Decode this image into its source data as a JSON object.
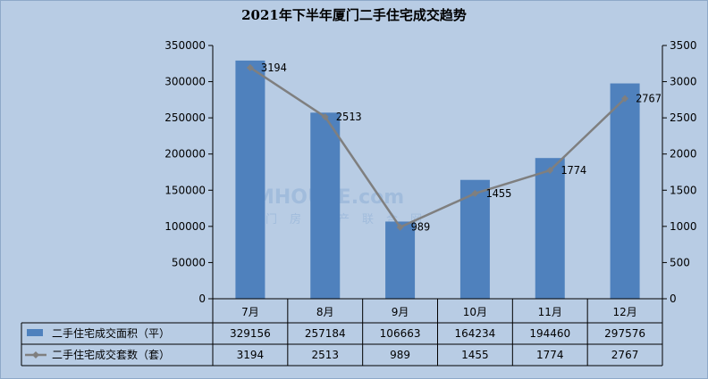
{
  "chart_data": {
    "type": "bar",
    "title": "2021年下半年厦门二手住宅成交趋势",
    "categories": [
      "7月",
      "8月",
      "9月",
      "10月",
      "11月",
      "12月"
    ],
    "series": [
      {
        "name": "二手住宅成交面积（平）",
        "type": "bar",
        "axis": "left",
        "values": [
          329156,
          257184,
          106663,
          164234,
          194460,
          297576
        ]
      },
      {
        "name": "二手住宅成交套数（套）",
        "type": "line",
        "axis": "right",
        "values": [
          3194,
          2513,
          989,
          1455,
          1774,
          2767
        ]
      }
    ],
    "ylim_left": [
      0,
      350000
    ],
    "yticks_left": [
      0,
      50000,
      100000,
      150000,
      200000,
      250000,
      300000,
      350000
    ],
    "ylim_right": [
      0,
      3500
    ],
    "yticks_right": [
      0,
      500,
      1000,
      1500,
      2000,
      2500,
      3000,
      3500
    ],
    "grid": false,
    "legend": "data-table",
    "colors": {
      "bar": "#4f81bd",
      "line": "#7f7f7f",
      "background": "#b8cce4"
    }
  },
  "watermark": {
    "text": "XMHOUSE.com",
    "subtext": "厦门房地产联合网"
  }
}
